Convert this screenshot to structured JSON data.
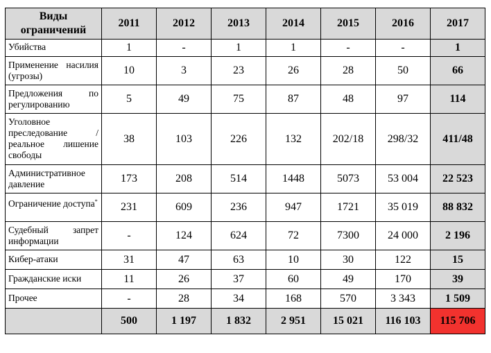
{
  "columns": {
    "label": "Виды ограничений",
    "years": [
      "2011",
      "2012",
      "2013",
      "2014",
      "2015",
      "2016",
      "2017"
    ]
  },
  "rows": [
    {
      "label": "Убийства",
      "note": "",
      "values": [
        "1",
        "-",
        "1",
        "1",
        "-",
        "-",
        "1"
      ]
    },
    {
      "label": "Применение насилия (угрозы)",
      "note": "",
      "values": [
        "10",
        "3",
        "23",
        "26",
        "28",
        "50",
        "66"
      ]
    },
    {
      "label": "Предложения по регулированию",
      "note": "",
      "values": [
        "5",
        "49",
        "75",
        "87",
        "48",
        "97",
        "114"
      ]
    },
    {
      "label": "Уголовное преследование / реальное лишение свободы",
      "note": "",
      "values": [
        "38",
        "103",
        "226",
        "132",
        "202/18",
        "298/32",
        "411/48"
      ]
    },
    {
      "label": "Административное давление",
      "note": "",
      "values": [
        "173",
        "208",
        "514",
        "1448",
        "5073",
        "53 004",
        "22 523"
      ]
    },
    {
      "label": "Ограничение доступа",
      "note": "*",
      "values": [
        "231",
        "609",
        "236",
        "947",
        "1721",
        "35 019",
        "88 832"
      ]
    },
    {
      "label": "Судебный запрет информации",
      "note": "",
      "values": [
        "-",
        "124",
        "624",
        "72",
        "7300",
        "24 000",
        "2 196"
      ]
    },
    {
      "label": "Кибер-атаки",
      "note": "",
      "values": [
        "31",
        "47",
        "63",
        "10",
        "30",
        "122",
        "15"
      ]
    },
    {
      "label": "Гражданские иски",
      "note": "",
      "values": [
        "11",
        "26",
        "37",
        "60",
        "49",
        "170",
        "39"
      ]
    },
    {
      "label": "Прочее",
      "note": "",
      "values": [
        "-",
        "28",
        "34",
        "168",
        "570",
        "3 343",
        "1 509"
      ]
    }
  ],
  "total": {
    "label": "",
    "values": [
      "500",
      "1 197",
      "1 832",
      "2 951",
      "15 021",
      "116 103",
      "115 706"
    ]
  },
  "colors": {
    "header_bg": "#d9d9d9",
    "highlight_2017": "#d9d9d9",
    "total_2017": "#f2322e"
  }
}
